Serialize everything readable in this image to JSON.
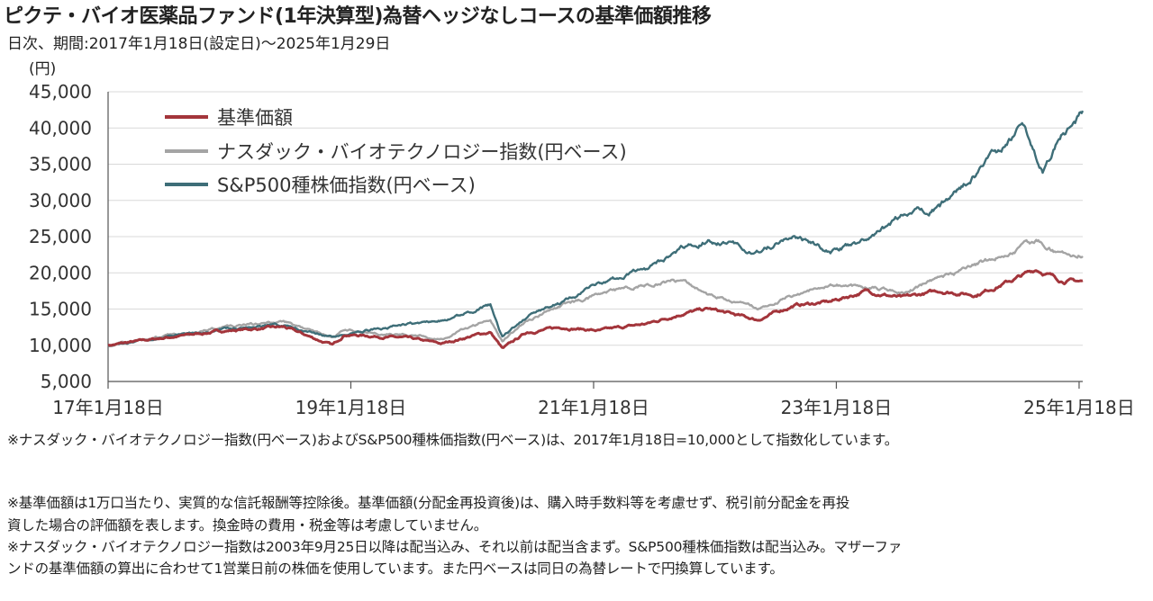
{
  "title": "ピクテ・バイオ医薬品ファンド(1年決算型)為替ヘッジなしコースの基準価額推移",
  "subtitle": "日次、期間:2017年1月18日(設定日)〜2025年1月29日",
  "notes": {
    "index_note": "※ナスダック・バイオテクノロジー指数(円ベース)およびS&P500種株価指数(円ベース)は、2017年1月18日=10,000として指数化しています。",
    "nav_note_1": "※基準価額は1万口当たり、実質的な信託報酬等控除後。基準価額(分配金再投資後)は、購入時手数料等を考慮せず、税引前分配金を再投",
    "nav_note_2": "資した場合の評価額を表します。換金時の費用・税金等は考慮していません。",
    "index_note_2a": "※ナスダック・バイオテクノロジー指数は2003年9月25日以降は配当込み、それ以前は配当含まず。S&P500種株価指数は配当込み。マザーファ",
    "index_note_2b": "ンドの基準価額の算出に合わせて1営業日前の株価を使用しています。また円ベースは同日の為替レートで円換算しています。"
  },
  "chart_data": {
    "type": "line",
    "title": "ピクテ・バイオ医薬品ファンド(1年決算型)為替ヘッジなしコースの基準価額推移",
    "ylabel": "(円)",
    "xlabel": "",
    "ylim": [
      5000,
      45000
    ],
    "yticks": [
      "5,000",
      "10,000",
      "15,000",
      "20,000",
      "25,000",
      "30,000",
      "35,000",
      "40,000",
      "45,000"
    ],
    "yticks_values": [
      5000,
      10000,
      15000,
      20000,
      25000,
      30000,
      35000,
      40000,
      45000
    ],
    "xlim": [
      2017.05,
      2025.08
    ],
    "xticks": [
      "17年1月18日",
      "19年1月18日",
      "21年1月18日",
      "23年1月18日",
      "25年1月18日"
    ],
    "xticks_values": [
      2017.05,
      2019.05,
      2021.05,
      2023.05,
      2025.05
    ],
    "grid": true,
    "legend_position": "top-left",
    "series": [
      {
        "name": "基準価額",
        "color": "#a3353b",
        "x": [
          2017.05,
          2017.5,
          2018.0,
          2018.5,
          2018.9,
          2019.0,
          2019.5,
          2019.8,
          2020.1,
          2020.2,
          2020.3,
          2020.5,
          2020.8,
          2021.1,
          2021.5,
          2021.8,
          2022.0,
          2022.4,
          2022.7,
          2023.0,
          2023.3,
          2023.6,
          2023.9,
          2024.2,
          2024.5,
          2024.7,
          2024.9,
          2025.08
        ],
        "y": [
          10000,
          11000,
          12000,
          12500,
          10000,
          11500,
          11000,
          10200,
          11500,
          11800,
          9500,
          11800,
          12500,
          12000,
          13000,
          14500,
          15000,
          13500,
          15500,
          16000,
          17500,
          16500,
          17500,
          17000,
          19000,
          20500,
          19000,
          18800
        ]
      },
      {
        "name": "ナスダック・バイオテクノロジー指数(円ベース)",
        "color": "#a4a4a4",
        "x": [
          2017.05,
          2017.5,
          2018.0,
          2018.5,
          2018.9,
          2019.0,
          2019.5,
          2019.8,
          2020.1,
          2020.2,
          2020.3,
          2020.5,
          2020.8,
          2021.1,
          2021.5,
          2021.8,
          2022.0,
          2022.4,
          2022.7,
          2023.0,
          2023.3,
          2023.6,
          2023.9,
          2024.2,
          2024.5,
          2024.7,
          2024.9,
          2025.08
        ],
        "y": [
          10000,
          11200,
          12500,
          13200,
          11000,
          12000,
          11500,
          10800,
          13000,
          13500,
          10500,
          13500,
          15500,
          17000,
          18500,
          19000,
          17000,
          15000,
          17000,
          18500,
          18000,
          17500,
          19000,
          21000,
          23000,
          24500,
          22500,
          22500
        ]
      },
      {
        "name": "S&P500種株価指数(円ベース)",
        "color": "#3e6e78",
        "x": [
          2017.05,
          2017.5,
          2018.0,
          2018.5,
          2018.9,
          2019.0,
          2019.5,
          2019.8,
          2020.1,
          2020.2,
          2020.3,
          2020.5,
          2020.8,
          2021.1,
          2021.5,
          2021.8,
          2022.0,
          2022.4,
          2022.7,
          2023.0,
          2023.3,
          2023.6,
          2023.9,
          2024.2,
          2024.5,
          2024.6,
          2024.75,
          2024.9,
          2025.08
        ],
        "y": [
          10000,
          11000,
          12200,
          12800,
          11000,
          11500,
          12800,
          13500,
          15000,
          15500,
          11000,
          14000,
          16000,
          18500,
          20500,
          23500,
          24500,
          23000,
          25000,
          23000,
          24500,
          28000,
          29000,
          33500,
          38500,
          40500,
          34000,
          39000,
          42000
        ]
      }
    ]
  }
}
